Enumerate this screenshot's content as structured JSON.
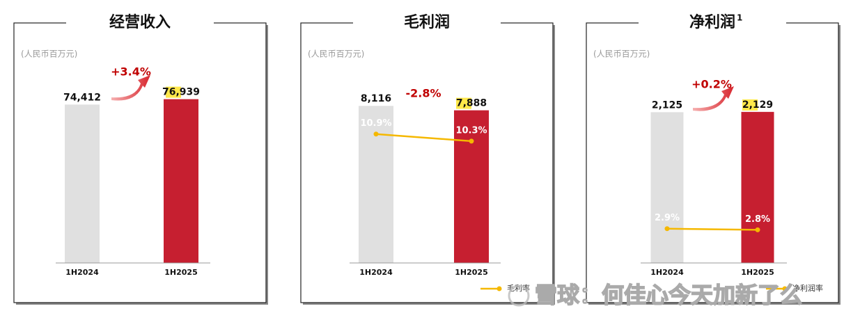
{
  "chart_data": [
    {
      "type": "bar",
      "title": "经营收入",
      "unit_label": "(人民币百万元)",
      "categories": [
        "1H2024",
        "1H2025"
      ],
      "values": [
        74412,
        76939
      ],
      "value_labels": [
        "74,412",
        "76,939"
      ],
      "colors": [
        "#e0e0e0",
        "#c61f30"
      ],
      "ylim": [
        0,
        100000
      ],
      "growth_label": "+3.4%",
      "growth_color": "#c00000",
      "growth_arrow": true
    },
    {
      "type": "bar",
      "title": "毛利润",
      "unit_label": "(人民币百万元)",
      "categories": [
        "1H2024",
        "1H2025"
      ],
      "values": [
        8116,
        7888
      ],
      "value_labels": [
        "8,116",
        "7,888"
      ],
      "colors": [
        "#e0e0e0",
        "#c61f30"
      ],
      "ylim": [
        0,
        11000
      ],
      "growth_label": "-2.8%",
      "growth_color": "#c00000",
      "growth_arrow": false,
      "y2lim": [
        0,
        18
      ],
      "series": [
        {
          "name": "毛利率",
          "color": "#f5b800",
          "values": [
            10.9,
            10.3
          ],
          "value_labels": [
            "10.9%",
            "10.3%"
          ],
          "axis": "y2"
        }
      ]
    },
    {
      "type": "bar",
      "title": "净利润",
      "title_note": "1",
      "unit_label": "(人民币百万元)",
      "categories": [
        "1H2024",
        "1H2025"
      ],
      "values": [
        2125,
        2129
      ],
      "value_labels": [
        "2,125",
        "2,129"
      ],
      "colors": [
        "#e0e0e0",
        "#c61f30"
      ],
      "ylim": [
        0,
        3000
      ],
      "growth_label": "+0.2%",
      "growth_color": "#c00000",
      "growth_arrow": true,
      "y2lim": [
        0,
        18
      ],
      "series": [
        {
          "name": "净利润率",
          "color": "#f5b800",
          "values": [
            2.9,
            2.8
          ],
          "value_labels": [
            "2.9%",
            "2.8%"
          ],
          "axis": "y2"
        }
      ]
    }
  ],
  "watermark": "雪球：何佳心今天加新了么"
}
